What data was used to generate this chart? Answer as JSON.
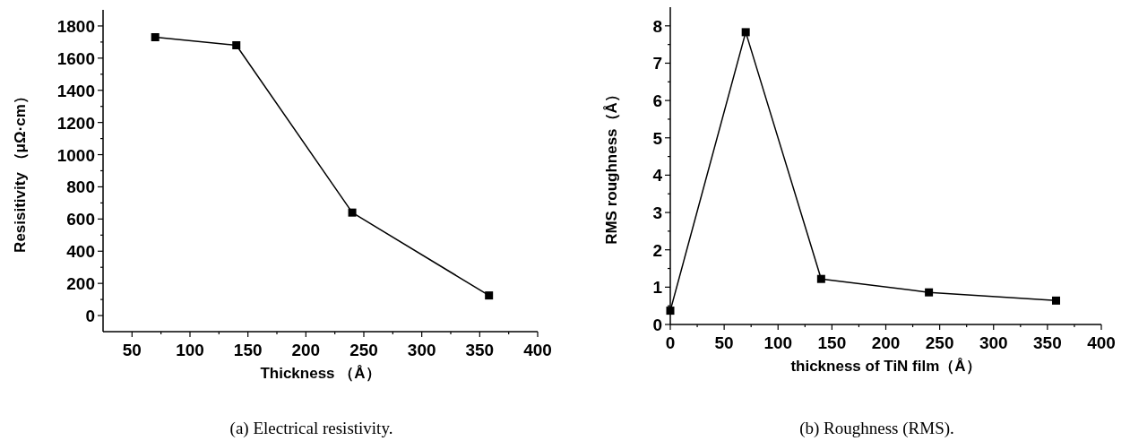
{
  "chart_data": [
    {
      "type": "line",
      "xlabel": "Thickness （Å）",
      "ylabel": "Resisitivity （μΩ·cm）",
      "annotations": [
        "(a) Electrical resistivity."
      ],
      "x": [
        70,
        140,
        240,
        358
      ],
      "series": [
        {
          "color": "#000000",
          "values": [
            1730,
            1680,
            640,
            125
          ]
        }
      ],
      "marker": "square",
      "line_style": "solid",
      "grid": false,
      "xlim": [
        25,
        400
      ],
      "ylim": [
        -100,
        1900
      ],
      "xticks": [
        50,
        {
          "value": 75,
          "label": null
        },
        100,
        {
          "value": 125,
          "label": null
        },
        150,
        {
          "value": 175,
          "label": null
        },
        200,
        {
          "value": 225,
          "label": null
        },
        250,
        {
          "value": 275,
          "label": null
        },
        300,
        {
          "value": 325,
          "label": null
        },
        350,
        {
          "value": 375,
          "label": null
        },
        400
      ],
      "yticks": [
        0,
        {
          "value": 100,
          "label": null
        },
        200,
        {
          "value": 300,
          "label": null
        },
        400,
        {
          "value": 500,
          "label": null
        },
        600,
        {
          "value": 700,
          "label": null
        },
        800,
        {
          "value": 900,
          "label": null
        },
        1000,
        {
          "value": 1100,
          "label": null
        },
        1200,
        {
          "value": 1300,
          "label": null
        },
        1400,
        {
          "value": 1500,
          "label": null
        },
        1600,
        {
          "value": 1700,
          "label": null
        },
        1800
      ]
    },
    {
      "type": "line",
      "xlabel": "thickness of TiN film（Å）",
      "ylabel": "RMS roughness（Å）",
      "annotations": [
        "(b) Roughness (RMS)."
      ],
      "x": [
        0,
        70,
        140,
        240,
        358
      ],
      "series": [
        {
          "color": "#000000",
          "values": [
            0.37,
            7.83,
            1.22,
            0.86,
            0.64
          ]
        }
      ],
      "marker": "square",
      "line_style": "solid",
      "grid": false,
      "xlim": [
        0,
        400
      ],
      "ylim": [
        0,
        8.5
      ],
      "xticks": [
        0,
        {
          "value": 25,
          "label": null
        },
        50,
        {
          "value": 75,
          "label": null
        },
        100,
        {
          "value": 125,
          "label": null
        },
        150,
        {
          "value": 175,
          "label": null
        },
        200,
        {
          "value": 225,
          "label": null
        },
        250,
        {
          "value": 275,
          "label": null
        },
        300,
        {
          "value": 325,
          "label": null
        },
        350,
        {
          "value": 375,
          "label": null
        },
        400
      ],
      "yticks": [
        0,
        {
          "value": 0.5,
          "label": null
        },
        1,
        {
          "value": 1.5,
          "label": null
        },
        2,
        {
          "value": 2.5,
          "label": null
        },
        3,
        {
          "value": 3.5,
          "label": null
        },
        4,
        {
          "value": 4.5,
          "label": null
        },
        5,
        {
          "value": 5.5,
          "label": null
        },
        6,
        {
          "value": 6.5,
          "label": null
        },
        7,
        {
          "value": 7.5,
          "label": null
        },
        8
      ]
    }
  ]
}
